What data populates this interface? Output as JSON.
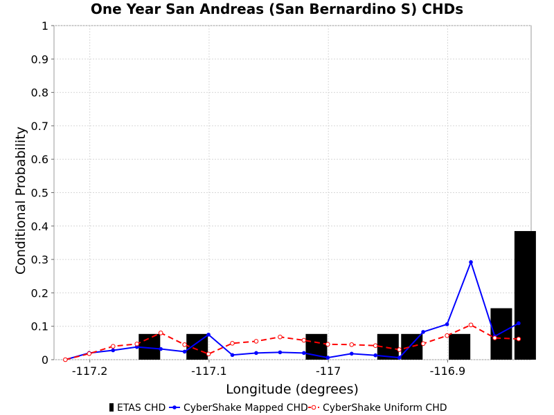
{
  "chart_data": {
    "type": "bar",
    "title": "One Year San Andreas (San Bernardino S) CHDs",
    "xlabel": "Longitude (degrees)",
    "ylabel": "Conditional Probability",
    "xlim": [
      -117.23,
      -116.83
    ],
    "ylim": [
      0,
      1
    ],
    "x_ticks": [
      -117.2,
      -117.1,
      -117.0,
      -116.9
    ],
    "x_tick_labels": [
      "-117.2",
      "-117.1",
      "-117",
      "-116.9"
    ],
    "y_ticks": [
      0,
      0.1,
      0.2,
      0.3,
      0.4,
      0.5,
      0.6,
      0.7,
      0.8,
      0.9,
      1
    ],
    "y_tick_labels": [
      "0",
      "0.1",
      "0.2",
      "0.3",
      "0.4",
      "0.5",
      "0.6",
      "0.7",
      "0.8",
      "0.9",
      "1"
    ],
    "grid": true,
    "legend_position": "bottom",
    "bar_series": {
      "name": "ETAS CHD",
      "color": "#000000",
      "x": [
        -117.15,
        -117.11,
        -117.01,
        -116.95,
        -116.93,
        -116.89,
        -116.855,
        -116.835
      ],
      "values": [
        0.077,
        0.077,
        0.077,
        0.077,
        0.077,
        0.077,
        0.154,
        0.385
      ]
    },
    "series": [
      {
        "name": "CyberShake Mapped CHD",
        "color": "#0000ff",
        "style": "solid",
        "marker": "filled-circle",
        "x": [
          -117.2205,
          -117.2005,
          -117.1805,
          -117.1605,
          -117.1405,
          -117.1205,
          -117.1005,
          -117.0805,
          -117.0605,
          -117.0405,
          -117.0205,
          -117.0005,
          -116.9805,
          -116.9605,
          -116.9405,
          -116.9205,
          -116.9005,
          -116.8805,
          -116.8605,
          -116.8405
        ],
        "values": [
          0.0,
          0.02,
          0.028,
          0.038,
          0.032,
          0.024,
          0.075,
          0.014,
          0.02,
          0.022,
          0.02,
          0.006,
          0.018,
          0.013,
          0.006,
          0.083,
          0.106,
          0.292,
          0.07,
          0.109
        ]
      },
      {
        "name": "CyberShake Uniform CHD",
        "color": "#ff0000",
        "style": "dashed",
        "marker": "open-circle",
        "x": [
          -117.2205,
          -117.2005,
          -117.1805,
          -117.1605,
          -117.1405,
          -117.1205,
          -117.1005,
          -117.0805,
          -117.0605,
          -117.0405,
          -117.0205,
          -117.0005,
          -116.9805,
          -116.9605,
          -116.9405,
          -116.9205,
          -116.9005,
          -116.8805,
          -116.8605,
          -116.8405
        ],
        "values": [
          0.0,
          0.018,
          0.04,
          0.047,
          0.08,
          0.045,
          0.017,
          0.049,
          0.055,
          0.068,
          0.058,
          0.046,
          0.045,
          0.042,
          0.03,
          0.048,
          0.072,
          0.104,
          0.065,
          0.062
        ]
      }
    ]
  }
}
